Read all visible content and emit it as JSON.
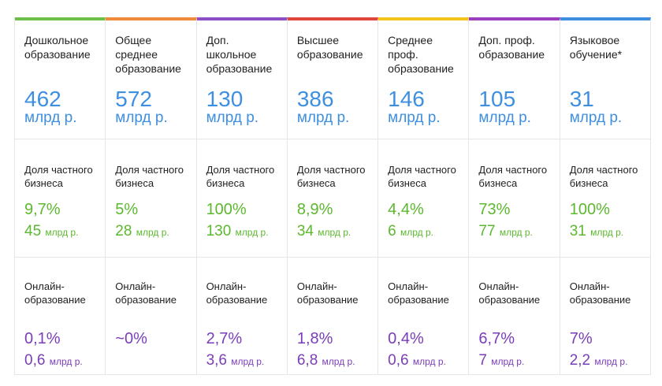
{
  "columns": [
    {
      "title": "Дошкольное образование",
      "accent": "#6cc04a",
      "market": "462",
      "market_unit": "млрд р.",
      "private_label": "Доля частного бизнеса",
      "private_pct": "9,7%",
      "private_amt": "45",
      "private_unit": "млрд р.",
      "online_label": "Онлайн-образование",
      "online_pct": "0,1%",
      "online_amt": "0,6",
      "online_unit": "млрд р."
    },
    {
      "title": "Общее среднее образование",
      "accent": "#f08a3c",
      "market": "572",
      "market_unit": "млрд р.",
      "private_label": "Доля частного бизнеса",
      "private_pct": "5%",
      "private_amt": "28",
      "private_unit": "млрд р.",
      "online_label": "Онлайн-образование",
      "online_pct": "~0%",
      "online_amt": "",
      "online_unit": ""
    },
    {
      "title": "Доп. школьное образование",
      "accent": "#8b4fc6",
      "market": "130",
      "market_unit": "млрд р.",
      "private_label": "Доля частного бизнеса",
      "private_pct": "100%",
      "private_amt": "130",
      "private_unit": "млрд р.",
      "online_label": "Онлайн-образование",
      "online_pct": "2,7%",
      "online_amt": "3,6",
      "online_unit": "млрд р."
    },
    {
      "title": "Высшее образование",
      "accent": "#e0463c",
      "market": "386",
      "market_unit": "млрд р.",
      "private_label": "Доля частного бизнеса",
      "private_pct": "8,9%",
      "private_amt": "34",
      "private_unit": "млрд р.",
      "online_label": "Онлайн-образование",
      "online_pct": "1,8%",
      "online_amt": "6,8",
      "online_unit": "млрд р."
    },
    {
      "title": "Среднее проф. образование",
      "accent": "#f2c318",
      "market": "146",
      "market_unit": "млрд р.",
      "private_label": "Доля частного бизнеса",
      "private_pct": "4,4%",
      "private_amt": "6",
      "private_unit": "млрд р.",
      "online_label": "Онлайн-образование",
      "online_pct": "0,4%",
      "online_amt": "0,6",
      "online_unit": "млрд р."
    },
    {
      "title": "Доп. проф. образование",
      "accent": "#9b3fbf",
      "market": "105",
      "market_unit": "млрд р.",
      "private_label": "Доля частного бизнеса",
      "private_pct": "73%",
      "private_amt": "77",
      "private_unit": "млрд р.",
      "online_label": "Онлайн-образование",
      "online_pct": "6,7%",
      "online_amt": "7",
      "online_unit": "млрд р."
    },
    {
      "title": "Языковое обучение*",
      "accent": "#3f8fe0",
      "market": "31",
      "market_unit": "млрд р.",
      "private_label": "Доля частного бизнеса",
      "private_pct": "100%",
      "private_amt": "31",
      "private_unit": "млрд р.",
      "online_label": "Онлайн-образование",
      "online_pct": "7%",
      "online_amt": "2,2",
      "online_unit": "млрд р."
    }
  ]
}
